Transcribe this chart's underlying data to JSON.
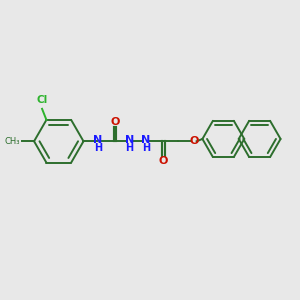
{
  "background_color": "#e8e8e8",
  "bond_color": "#2d6e2d",
  "n_color": "#1a1aff",
  "o_color": "#cc1100",
  "cl_color": "#2db32d",
  "figsize": [
    3.0,
    3.0
  ],
  "dpi": 100,
  "xlim": [
    0,
    10
  ],
  "ylim": [
    0,
    10
  ]
}
